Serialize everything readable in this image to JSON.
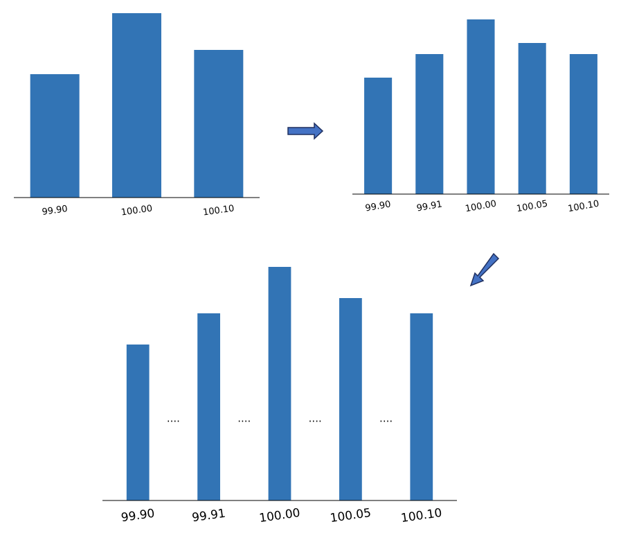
{
  "chart_data": [
    {
      "type": "bar",
      "categories": [
        "99.90",
        "100.00",
        "100.10"
      ],
      "values": [
        178,
        266,
        213
      ],
      "color": "#3274b5",
      "ylim": [
        0,
        266
      ]
    },
    {
      "type": "bar",
      "categories": [
        "99.90",
        "99.91",
        "100.00",
        "100.05",
        "100.10"
      ],
      "values": [
        168,
        202,
        252,
        218,
        202
      ],
      "color": "#3274b5",
      "ylim": [
        0,
        252
      ]
    },
    {
      "type": "bar",
      "categories": [
        "99.90",
        "99.91",
        "100.00",
        "100.05",
        "100.10"
      ],
      "values": [
        225,
        270,
        337,
        292,
        270
      ],
      "color": "#3274b5",
      "ylim": [
        0,
        337
      ],
      "annotations": [
        "....",
        "....",
        "....",
        "...."
      ]
    }
  ]
}
